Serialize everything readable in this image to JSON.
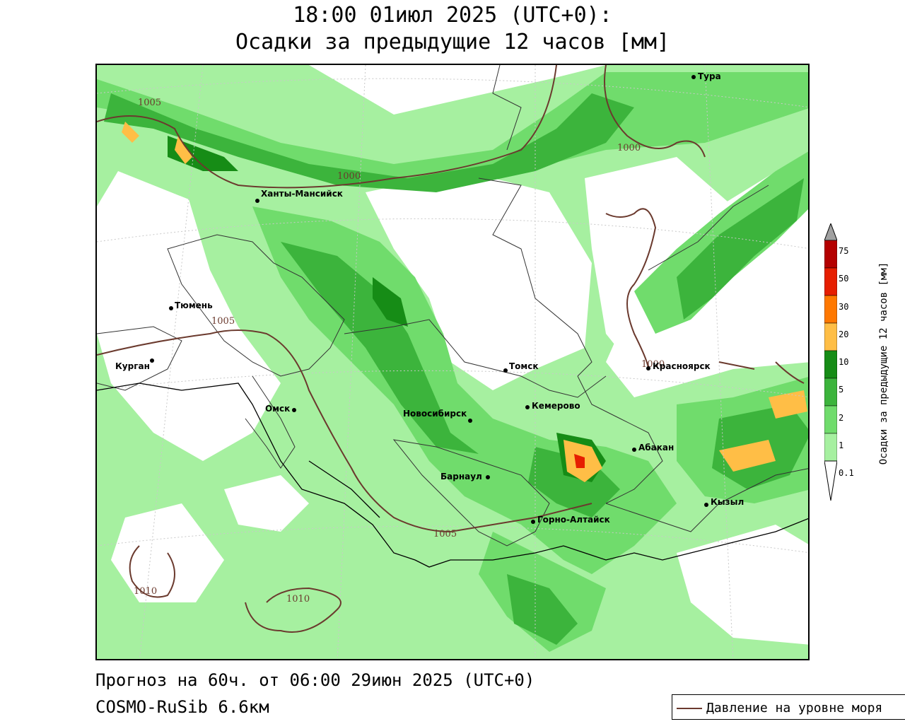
{
  "title": {
    "line1": "18:00 01июл 2025 (UTC+0):",
    "line2": "Осадки за предыдущие 12 часов [мм]"
  },
  "footer": {
    "forecast": "Прогноз на 60ч. от 06:00 29июн 2025 (UTC+0)",
    "model": "COSMO-RuSib 6.6км"
  },
  "pressure_legend": {
    "label": "Давление на уровне моря"
  },
  "colorbar": {
    "title": "Осадки за предыдущие 12 часов [мм]",
    "ticks": [
      "0.1",
      "1",
      "2",
      "5",
      "10",
      "20",
      "30",
      "50",
      "75"
    ],
    "colors": [
      "#ffffff",
      "#a6f0a0",
      "#70dc6c",
      "#3cb43c",
      "#168c16",
      "#ffbe46",
      "#ff7800",
      "#e61e00",
      "#b40000",
      "#a0a0a0"
    ]
  },
  "cities": [
    {
      "name": "Тура"
    },
    {
      "name": "Ханты-Мансийск"
    },
    {
      "name": "Тюмень"
    },
    {
      "name": "Курган"
    },
    {
      "name": "Омск"
    },
    {
      "name": "Томск"
    },
    {
      "name": "Красноярск"
    },
    {
      "name": "Кемерово"
    },
    {
      "name": "Новосибирск"
    },
    {
      "name": "Абакан"
    },
    {
      "name": "Барнаул"
    },
    {
      "name": "Горно-Алтайск"
    },
    {
      "name": "Кызыл"
    }
  ],
  "isobars": [
    "1005",
    "1000",
    "1000",
    "1000",
    "1005",
    "1005",
    "1010",
    "1010"
  ]
}
